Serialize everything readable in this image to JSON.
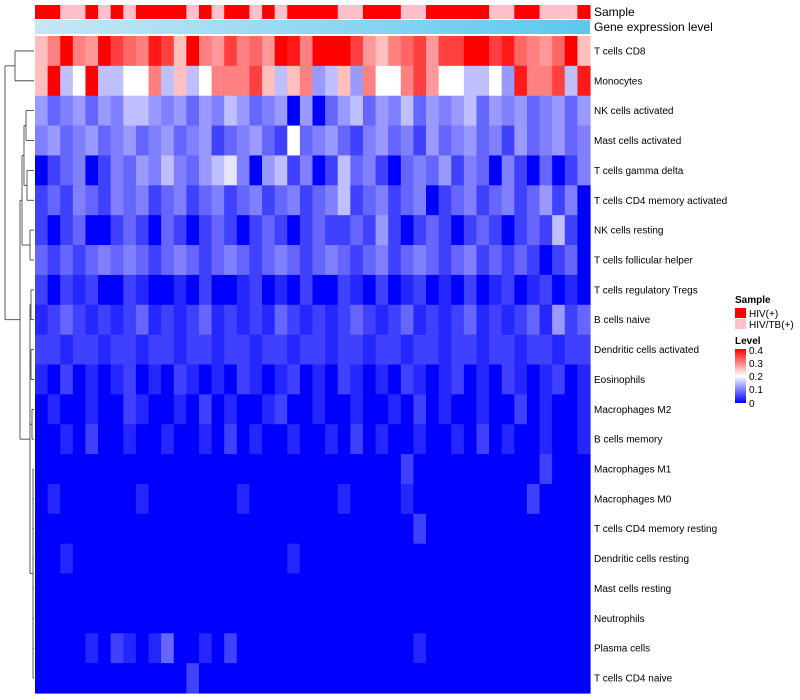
{
  "chart_data": {
    "type": "heatmap",
    "title": "",
    "annotation_labels": [
      "Sample",
      "Gene expression level"
    ],
    "rows": [
      "T cells CD8",
      "Monocytes",
      "NK cells activated",
      "Mast cells activated",
      "T cells gamma delta",
      "T cells CD4 memory activated",
      "NK cells resting",
      "T cells follicular helper",
      "T cells regulatory  Tregs",
      "B cells naive",
      "Dendritic cells activated",
      "Eosinophils",
      "Macrophages M2",
      "B cells memory",
      "Macrophages M1",
      "Macrophages M0",
      "T cells CD4 memory resting",
      "Dendritic cells resting",
      "Mast cells resting",
      "Neutrophils",
      "Plasma cells",
      "T cells CD4 naive"
    ],
    "n_columns": 44,
    "sample_groups": [
      "HIV(+)",
      "HIV(+)",
      "HIV/TB(+)",
      "HIV/TB(+)",
      "HIV(+)",
      "HIV/TB(+)",
      "HIV(+)",
      "HIV/TB(+)",
      "HIV(+)",
      "HIV(+)",
      "HIV(+)",
      "HIV(+)",
      "HIV/TB(+)",
      "HIV(+)",
      "HIV/TB(+)",
      "HIV(+)",
      "HIV(+)",
      "HIV/TB(+)",
      "HIV(+)",
      "HIV/TB(+)",
      "HIV(+)",
      "HIV(+)",
      "HIV(+)",
      "HIV(+)",
      "HIV/TB(+)",
      "HIV/TB(+)",
      "HIV(+)",
      "HIV(+)",
      "HIV(+)",
      "HIV/TB(+)",
      "HIV/TB(+)",
      "HIV(+)",
      "HIV(+)",
      "HIV(+)",
      "HIV(+)",
      "HIV(+)",
      "HIV/TB(+)",
      "HIV/TB(+)",
      "HIV(+)",
      "HIV(+)",
      "HIV/TB(+)",
      "HIV/TB(+)",
      "HIV/TB(+)",
      "HIV(+)"
    ],
    "values": [
      [
        0.25,
        0.3,
        0.4,
        0.3,
        0.28,
        0.4,
        0.35,
        0.32,
        0.3,
        0.38,
        0.35,
        0.25,
        0.4,
        0.3,
        0.28,
        0.35,
        0.3,
        0.32,
        0.28,
        0.4,
        0.38,
        0.3,
        0.4,
        0.4,
        0.4,
        0.35,
        0.28,
        0.25,
        0.3,
        0.32,
        0.35,
        0.28,
        0.35,
        0.35,
        0.4,
        0.4,
        0.35,
        0.38,
        0.32,
        0.3,
        0.28,
        0.32,
        0.4,
        0.25
      ],
      [
        0.25,
        0.4,
        0.15,
        0.2,
        0.4,
        0.15,
        0.15,
        0.2,
        0.2,
        0.3,
        0.15,
        0.25,
        0.15,
        0.2,
        0.3,
        0.3,
        0.3,
        0.35,
        0.25,
        0.15,
        0.25,
        0.3,
        0.12,
        0.15,
        0.25,
        0.12,
        0.3,
        0.2,
        0.2,
        0.3,
        0.35,
        0.28,
        0.2,
        0.2,
        0.15,
        0.15,
        0.2,
        0.12,
        0.38,
        0.3,
        0.3,
        0.35,
        0.15,
        0.38
      ],
      [
        0.12,
        0.08,
        0.1,
        0.12,
        0.08,
        0.12,
        0.1,
        0.15,
        0.15,
        0.12,
        0.1,
        0.12,
        0.08,
        0.12,
        0.1,
        0.15,
        0.12,
        0.08,
        0.1,
        0.12,
        0.0,
        0.12,
        0.0,
        0.08,
        0.12,
        0.15,
        0.08,
        0.12,
        0.1,
        0.15,
        0.08,
        0.12,
        0.1,
        0.12,
        0.15,
        0.08,
        0.12,
        0.1,
        0.12,
        0.08,
        0.1,
        0.12,
        0.08,
        0.12
      ],
      [
        0.1,
        0.12,
        0.08,
        0.1,
        0.12,
        0.08,
        0.1,
        0.12,
        0.08,
        0.1,
        0.12,
        0.08,
        0.1,
        0.12,
        0.05,
        0.08,
        0.1,
        0.12,
        0.08,
        0.05,
        0.2,
        0.08,
        0.1,
        0.12,
        0.08,
        0.05,
        0.1,
        0.12,
        0.08,
        0.1,
        0.05,
        0.12,
        0.08,
        0.1,
        0.12,
        0.08,
        0.1,
        0.05,
        0.12,
        0.08,
        0.1,
        0.12,
        0.08,
        0.1
      ],
      [
        0.0,
        0.05,
        0.08,
        0.1,
        0.0,
        0.05,
        0.1,
        0.08,
        0.12,
        0.1,
        0.15,
        0.1,
        0.08,
        0.12,
        0.15,
        0.18,
        0.1,
        0.0,
        0.12,
        0.15,
        0.05,
        0.1,
        0.0,
        0.05,
        0.15,
        0.08,
        0.1,
        0.05,
        0.0,
        0.08,
        0.1,
        0.08,
        0.12,
        0.05,
        0.1,
        0.08,
        0.0,
        0.1,
        0.05,
        0.0,
        0.08,
        0.0,
        0.05,
        0.1
      ],
      [
        0.05,
        0.08,
        0.05,
        0.1,
        0.08,
        0.05,
        0.1,
        0.08,
        0.1,
        0.05,
        0.08,
        0.1,
        0.05,
        0.08,
        0.1,
        0.05,
        0.08,
        0.1,
        0.05,
        0.08,
        0.1,
        0.05,
        0.08,
        0.1,
        0.15,
        0.05,
        0.08,
        0.1,
        0.05,
        0.08,
        0.1,
        0.0,
        0.05,
        0.08,
        0.1,
        0.05,
        0.08,
        0.1,
        0.05,
        0.08,
        0.12,
        0.05,
        0.1,
        0.0
      ],
      [
        0.05,
        0.0,
        0.05,
        0.08,
        0.0,
        0.0,
        0.05,
        0.08,
        0.05,
        0.0,
        0.08,
        0.05,
        0.0,
        0.05,
        0.08,
        0.05,
        0.0,
        0.05,
        0.08,
        0.05,
        0.0,
        0.05,
        0.08,
        0.05,
        0.05,
        0.08,
        0.05,
        0.12,
        0.05,
        0.0,
        0.05,
        0.08,
        0.05,
        0.0,
        0.05,
        0.08,
        0.05,
        0.0,
        0.05,
        0.08,
        0.05,
        0.15,
        0.05,
        0.0
      ],
      [
        0.08,
        0.05,
        0.08,
        0.05,
        0.08,
        0.1,
        0.08,
        0.1,
        0.08,
        0.05,
        0.08,
        0.1,
        0.08,
        0.05,
        0.08,
        0.1,
        0.08,
        0.05,
        0.08,
        0.1,
        0.08,
        0.05,
        0.08,
        0.1,
        0.08,
        0.05,
        0.08,
        0.1,
        0.05,
        0.08,
        0.1,
        0.08,
        0.05,
        0.08,
        0.1,
        0.05,
        0.08,
        0.05,
        0.08,
        0.05,
        0.0,
        0.05,
        0.08,
        0.0
      ],
      [
        0.05,
        0.0,
        0.05,
        0.03,
        0.05,
        0.0,
        0.0,
        0.05,
        0.03,
        0.0,
        0.0,
        0.03,
        0.0,
        0.05,
        0.0,
        0.0,
        0.03,
        0.05,
        0.0,
        0.03,
        0.0,
        0.05,
        0.0,
        0.0,
        0.05,
        0.03,
        0.0,
        0.05,
        0.0,
        0.03,
        0.05,
        0.0,
        0.03,
        0.0,
        0.05,
        0.0,
        0.03,
        0.05,
        0.0,
        0.03,
        0.05,
        0.0,
        0.03,
        0.0
      ],
      [
        0.03,
        0.05,
        0.08,
        0.05,
        0.03,
        0.05,
        0.03,
        0.05,
        0.08,
        0.03,
        0.05,
        0.03,
        0.05,
        0.08,
        0.03,
        0.05,
        0.03,
        0.05,
        0.03,
        0.08,
        0.05,
        0.03,
        0.05,
        0.03,
        0.05,
        0.08,
        0.05,
        0.03,
        0.05,
        0.08,
        0.03,
        0.05,
        0.03,
        0.05,
        0.08,
        0.03,
        0.05,
        0.03,
        0.05,
        0.08,
        0.03,
        0.12,
        0.05,
        0.08
      ],
      [
        0.05,
        0.05,
        0.03,
        0.05,
        0.05,
        0.03,
        0.05,
        0.05,
        0.03,
        0.05,
        0.05,
        0.03,
        0.05,
        0.05,
        0.03,
        0.05,
        0.05,
        0.03,
        0.05,
        0.05,
        0.03,
        0.05,
        0.05,
        0.03,
        0.05,
        0.05,
        0.03,
        0.05,
        0.05,
        0.03,
        0.05,
        0.05,
        0.03,
        0.05,
        0.05,
        0.03,
        0.05,
        0.05,
        0.03,
        0.05,
        0.05,
        0.03,
        0.05,
        0.05
      ],
      [
        0.03,
        0.0,
        0.05,
        0.0,
        0.03,
        0.0,
        0.03,
        0.05,
        0.0,
        0.03,
        0.0,
        0.05,
        0.03,
        0.0,
        0.03,
        0.0,
        0.05,
        0.03,
        0.0,
        0.03,
        0.05,
        0.0,
        0.03,
        0.0,
        0.05,
        0.03,
        0.0,
        0.03,
        0.0,
        0.05,
        0.03,
        0.0,
        0.03,
        0.05,
        0.0,
        0.03,
        0.0,
        0.05,
        0.03,
        0.0,
        0.03,
        0.05,
        0.0,
        0.03
      ],
      [
        0.0,
        0.03,
        0.0,
        0.0,
        0.03,
        0.0,
        0.0,
        0.05,
        0.03,
        0.0,
        0.0,
        0.03,
        0.0,
        0.05,
        0.0,
        0.03,
        0.0,
        0.0,
        0.03,
        0.05,
        0.0,
        0.0,
        0.03,
        0.0,
        0.0,
        0.03,
        0.0,
        0.0,
        0.03,
        0.0,
        0.05,
        0.0,
        0.03,
        0.0,
        0.0,
        0.03,
        0.0,
        0.0,
        0.05,
        0.0,
        0.03,
        0.0,
        0.0,
        0.03
      ],
      [
        0.0,
        0.0,
        0.03,
        0.0,
        0.05,
        0.0,
        0.0,
        0.03,
        0.0,
        0.0,
        0.03,
        0.0,
        0.0,
        0.03,
        0.0,
        0.05,
        0.0,
        0.03,
        0.0,
        0.0,
        0.03,
        0.0,
        0.0,
        0.03,
        0.0,
        0.05,
        0.0,
        0.03,
        0.0,
        0.0,
        0.03,
        0.0,
        0.0,
        0.03,
        0.0,
        0.05,
        0.0,
        0.03,
        0.0,
        0.0,
        0.03,
        0.0,
        0.0,
        0.03
      ],
      [
        0.0,
        0.0,
        0.0,
        0.0,
        0.0,
        0.0,
        0.0,
        0.0,
        0.0,
        0.0,
        0.0,
        0.0,
        0.0,
        0.0,
        0.0,
        0.0,
        0.0,
        0.0,
        0.0,
        0.0,
        0.0,
        0.0,
        0.0,
        0.0,
        0.0,
        0.0,
        0.0,
        0.0,
        0.0,
        0.05,
        0.0,
        0.0,
        0.0,
        0.0,
        0.0,
        0.0,
        0.0,
        0.0,
        0.0,
        0.0,
        0.05,
        0.0,
        0.0,
        0.0
      ],
      [
        0.0,
        0.03,
        0.0,
        0.0,
        0.0,
        0.0,
        0.0,
        0.0,
        0.03,
        0.0,
        0.0,
        0.0,
        0.0,
        0.0,
        0.0,
        0.0,
        0.03,
        0.0,
        0.0,
        0.0,
        0.0,
        0.0,
        0.0,
        0.0,
        0.03,
        0.0,
        0.0,
        0.0,
        0.0,
        0.03,
        0.0,
        0.0,
        0.0,
        0.0,
        0.0,
        0.0,
        0.0,
        0.0,
        0.0,
        0.05,
        0.0,
        0.0,
        0.0,
        0.0
      ],
      [
        0.0,
        0.0,
        0.0,
        0.0,
        0.0,
        0.0,
        0.0,
        0.0,
        0.0,
        0.0,
        0.0,
        0.0,
        0.0,
        0.0,
        0.0,
        0.0,
        0.0,
        0.0,
        0.0,
        0.0,
        0.0,
        0.0,
        0.0,
        0.0,
        0.0,
        0.0,
        0.0,
        0.0,
        0.0,
        0.0,
        0.05,
        0.0,
        0.0,
        0.0,
        0.0,
        0.0,
        0.0,
        0.0,
        0.0,
        0.0,
        0.0,
        0.0,
        0.0,
        0.0
      ],
      [
        0.0,
        0.0,
        0.03,
        0.0,
        0.0,
        0.0,
        0.0,
        0.0,
        0.0,
        0.0,
        0.0,
        0.0,
        0.0,
        0.0,
        0.0,
        0.0,
        0.0,
        0.0,
        0.0,
        0.0,
        0.03,
        0.0,
        0.0,
        0.0,
        0.0,
        0.0,
        0.0,
        0.0,
        0.0,
        0.0,
        0.0,
        0.0,
        0.0,
        0.0,
        0.0,
        0.0,
        0.0,
        0.0,
        0.0,
        0.0,
        0.0,
        0.0,
        0.0,
        0.0
      ],
      [
        0.0,
        0.0,
        0.0,
        0.0,
        0.0,
        0.0,
        0.0,
        0.0,
        0.0,
        0.0,
        0.0,
        0.0,
        0.0,
        0.0,
        0.0,
        0.0,
        0.0,
        0.0,
        0.0,
        0.0,
        0.0,
        0.0,
        0.0,
        0.0,
        0.0,
        0.0,
        0.0,
        0.0,
        0.0,
        0.0,
        0.0,
        0.0,
        0.0,
        0.0,
        0.0,
        0.0,
        0.0,
        0.0,
        0.0,
        0.0,
        0.0,
        0.0,
        0.0,
        0.0
      ],
      [
        0.0,
        0.0,
        0.0,
        0.0,
        0.0,
        0.0,
        0.0,
        0.0,
        0.0,
        0.0,
        0.0,
        0.0,
        0.0,
        0.0,
        0.0,
        0.0,
        0.0,
        0.0,
        0.0,
        0.0,
        0.0,
        0.0,
        0.0,
        0.0,
        0.0,
        0.0,
        0.0,
        0.0,
        0.0,
        0.0,
        0.0,
        0.0,
        0.0,
        0.0,
        0.0,
        0.0,
        0.0,
        0.0,
        0.0,
        0.0,
        0.0,
        0.0,
        0.0,
        0.0
      ],
      [
        0.0,
        0.0,
        0.0,
        0.0,
        0.03,
        0.0,
        0.05,
        0.03,
        0.0,
        0.03,
        0.08,
        0.0,
        0.0,
        0.03,
        0.0,
        0.05,
        0.0,
        0.0,
        0.0,
        0.0,
        0.0,
        0.0,
        0.0,
        0.0,
        0.0,
        0.0,
        0.0,
        0.0,
        0.0,
        0.0,
        0.03,
        0.0,
        0.0,
        0.0,
        0.0,
        0.0,
        0.0,
        0.0,
        0.0,
        0.0,
        0.0,
        0.0,
        0.0,
        0.0
      ],
      [
        0.0,
        0.0,
        0.0,
        0.0,
        0.0,
        0.0,
        0.0,
        0.0,
        0.0,
        0.0,
        0.0,
        0.0,
        0.05,
        0.0,
        0.0,
        0.0,
        0.0,
        0.0,
        0.0,
        0.0,
        0.0,
        0.0,
        0.0,
        0.0,
        0.0,
        0.0,
        0.0,
        0.0,
        0.0,
        0.0,
        0.0,
        0.0,
        0.0,
        0.0,
        0.0,
        0.0,
        0.0,
        0.0,
        0.0,
        0.0,
        0.0,
        0.0,
        0.0,
        0.0
      ]
    ],
    "color_scale": {
      "min": 0,
      "max": 0.4,
      "low": "#0000ff",
      "mid": "#ffffff",
      "high": "#ff0000",
      "mid_value": 0.2
    },
    "legends": [
      {
        "title": "Sample",
        "items": [
          {
            "label": "HIV(+)",
            "color": "#ff0000"
          },
          {
            "label": "HIV/TB(+)",
            "color": "#ffc0cb"
          }
        ]
      },
      {
        "title": "Level",
        "ticks": [
          "0.4",
          "0.3",
          "0.2",
          "0.1",
          "0"
        ],
        "tick_values": [
          0.4,
          0.3,
          0.2,
          0.1,
          0
        ]
      }
    ],
    "annotation_gradient": {
      "from": "#c6e7f5",
      "to": "#5bc8f0"
    },
    "dendrogram": "rows"
  }
}
